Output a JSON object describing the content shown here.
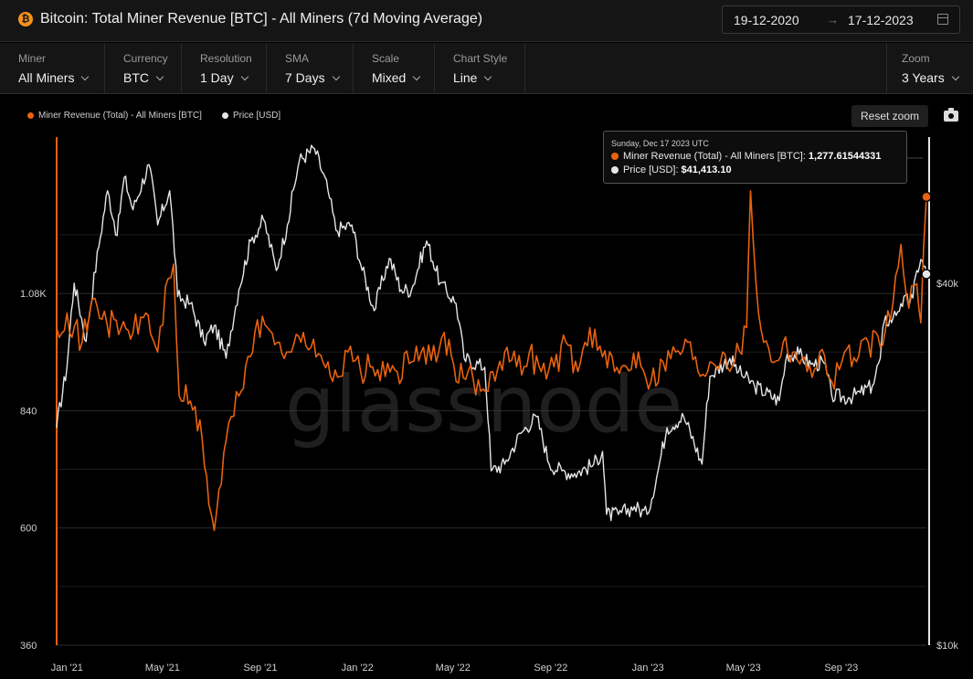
{
  "header": {
    "title": "Bitcoin: Total Miner Revenue [BTC] - All Miners (7d Moving Average)",
    "asset_icon": "₿",
    "date_from": "19-12-2020",
    "date_arrow": "→",
    "date_to": "17-12-2023"
  },
  "controls": [
    {
      "label": "Miner",
      "value": "All Miners"
    },
    {
      "label": "Currency",
      "value": "BTC"
    },
    {
      "label": "Resolution",
      "value": "1 Day"
    },
    {
      "label": "SMA",
      "value": "7 Days"
    },
    {
      "label": "Scale",
      "value": "Mixed"
    },
    {
      "label": "Chart Style",
      "value": "Line"
    }
  ],
  "zoom": {
    "label": "Zoom",
    "value": "3 Years"
  },
  "toolbar": {
    "reset_label": "Reset zoom"
  },
  "watermark": "glassnode",
  "tooltip": {
    "date": "Sunday, Dec 17 2023 UTC",
    "revenue_label": "Miner Revenue (Total) - All Miners [BTC]:",
    "revenue_value": "1,277.61544331",
    "price_label": "Price [USD]:",
    "price_value": "$41,413.10"
  },
  "colors": {
    "revenue": "#e8620f",
    "price": "#e6e6e6",
    "background": "#000000",
    "grid": "#2c2c2c"
  },
  "chart_data": {
    "type": "line",
    "x_start": "2020-12-19",
    "x_end": "2023-12-17",
    "x_tick_labels": [
      "Jan '21",
      "May '21",
      "Sep '21",
      "Jan '22",
      "May '22",
      "Sep '22",
      "Jan '23",
      "May '23",
      "Sep '23"
    ],
    "left_axis": {
      "scale": "linear",
      "ticks": [
        "360",
        "600",
        "840",
        "1.08K"
      ],
      "ylim": [
        360,
        1400
      ]
    },
    "right_axis": {
      "scale": "log",
      "ticks": [
        "$10k",
        "$40k"
      ],
      "ylim": [
        10000,
        70000
      ]
    },
    "legend": [
      "Miner Revenue (Total) - All Miners [BTC]",
      "Price [USD]"
    ],
    "legend_position": "top-left",
    "grid": true,
    "series": [
      {
        "name": "Miner Revenue (Total) - All Miners [BTC]",
        "axis": "left",
        "points": [
          [
            "2020-12-19",
            1010
          ],
          [
            "2021-01-01",
            1040
          ],
          [
            "2021-01-20",
            980
          ],
          [
            "2021-02-05",
            1070
          ],
          [
            "2021-02-20",
            1020
          ],
          [
            "2021-03-10",
            1010
          ],
          [
            "2021-03-25",
            1000
          ],
          [
            "2021-04-10",
            1040
          ],
          [
            "2021-04-25",
            960
          ],
          [
            "2021-05-08",
            1110
          ],
          [
            "2021-05-15",
            1140
          ],
          [
            "2021-05-22",
            870
          ],
          [
            "2021-06-05",
            860
          ],
          [
            "2021-06-20",
            780
          ],
          [
            "2021-07-01",
            630
          ],
          [
            "2021-07-05",
            595
          ],
          [
            "2021-07-20",
            780
          ],
          [
            "2021-08-05",
            870
          ],
          [
            "2021-08-25",
            1000
          ],
          [
            "2021-09-10",
            1010
          ],
          [
            "2021-09-25",
            980
          ],
          [
            "2021-10-10",
            960
          ],
          [
            "2021-10-25",
            1000
          ],
          [
            "2021-11-10",
            950
          ],
          [
            "2021-11-25",
            940
          ],
          [
            "2021-12-10",
            910
          ],
          [
            "2021-12-20",
            960
          ],
          [
            "2022-01-05",
            920
          ],
          [
            "2022-01-20",
            930
          ],
          [
            "2022-02-05",
            910
          ],
          [
            "2022-02-20",
            920
          ],
          [
            "2022-03-10",
            940
          ],
          [
            "2022-03-25",
            970
          ],
          [
            "2022-04-10",
            940
          ],
          [
            "2022-04-20",
            1000
          ],
          [
            "2022-05-05",
            900
          ],
          [
            "2022-05-20",
            920
          ],
          [
            "2022-06-05",
            880
          ],
          [
            "2022-06-20",
            920
          ],
          [
            "2022-07-05",
            960
          ],
          [
            "2022-07-20",
            930
          ],
          [
            "2022-08-05",
            960
          ],
          [
            "2022-08-20",
            920
          ],
          [
            "2022-09-05",
            930
          ],
          [
            "2022-09-20",
            980
          ],
          [
            "2022-10-05",
            920
          ],
          [
            "2022-10-20",
            1010
          ],
          [
            "2022-11-05",
            950
          ],
          [
            "2022-11-20",
            920
          ],
          [
            "2022-12-05",
            930
          ],
          [
            "2022-12-20",
            960
          ],
          [
            "2023-01-05",
            900
          ],
          [
            "2023-01-20",
            940
          ],
          [
            "2023-02-05",
            960
          ],
          [
            "2023-02-20",
            980
          ],
          [
            "2023-03-05",
            920
          ],
          [
            "2023-03-20",
            940
          ],
          [
            "2023-04-05",
            960
          ],
          [
            "2023-04-20",
            940
          ],
          [
            "2023-05-05",
            1010
          ],
          [
            "2023-05-10",
            1290
          ],
          [
            "2023-05-20",
            1040
          ],
          [
            "2023-06-05",
            940
          ],
          [
            "2023-06-20",
            980
          ],
          [
            "2023-07-05",
            960
          ],
          [
            "2023-07-20",
            920
          ],
          [
            "2023-08-05",
            960
          ],
          [
            "2023-08-20",
            900
          ],
          [
            "2023-09-05",
            960
          ],
          [
            "2023-09-20",
            940
          ],
          [
            "2023-10-05",
            980
          ],
          [
            "2023-10-20",
            970
          ],
          [
            "2023-11-05",
            1060
          ],
          [
            "2023-11-15",
            1180
          ],
          [
            "2023-11-25",
            1050
          ],
          [
            "2023-12-05",
            1100
          ],
          [
            "2023-12-10",
            1020
          ],
          [
            "2023-12-17",
            1277.6
          ]
        ]
      },
      {
        "name": "Price [USD]",
        "axis": "right",
        "points": [
          [
            "2020-12-19",
            23000
          ],
          [
            "2021-01-01",
            29000
          ],
          [
            "2021-01-10",
            40000
          ],
          [
            "2021-01-25",
            32000
          ],
          [
            "2021-02-10",
            46000
          ],
          [
            "2021-02-21",
            57000
          ],
          [
            "2021-03-05",
            48000
          ],
          [
            "2021-03-14",
            60000
          ],
          [
            "2021-03-25",
            53000
          ],
          [
            "2021-04-14",
            63000
          ],
          [
            "2021-04-25",
            50000
          ],
          [
            "2021-05-10",
            57000
          ],
          [
            "2021-05-20",
            38000
          ],
          [
            "2021-06-05",
            37000
          ],
          [
            "2021-06-22",
            32000
          ],
          [
            "2021-07-05",
            34000
          ],
          [
            "2021-07-20",
            30000
          ],
          [
            "2021-08-05",
            39000
          ],
          [
            "2021-08-20",
            47000
          ],
          [
            "2021-09-05",
            51000
          ],
          [
            "2021-09-21",
            42000
          ],
          [
            "2021-10-05",
            50000
          ],
          [
            "2021-10-20",
            64000
          ],
          [
            "2021-11-08",
            67000
          ],
          [
            "2021-11-25",
            57000
          ],
          [
            "2021-12-05",
            49000
          ],
          [
            "2021-12-25",
            50000
          ],
          [
            "2022-01-05",
            43000
          ],
          [
            "2022-01-22",
            36000
          ],
          [
            "2022-02-10",
            44000
          ],
          [
            "2022-02-25",
            39000
          ],
          [
            "2022-03-10",
            39000
          ],
          [
            "2022-03-29",
            47000
          ],
          [
            "2022-04-15",
            40000
          ],
          [
            "2022-05-05",
            37000
          ],
          [
            "2022-05-15",
            30000
          ],
          [
            "2022-06-10",
            29000
          ],
          [
            "2022-06-18",
            19500
          ],
          [
            "2022-07-05",
            20000
          ],
          [
            "2022-07-25",
            22500
          ],
          [
            "2022-08-14",
            24000
          ],
          [
            "2022-08-30",
            20000
          ],
          [
            "2022-09-15",
            19500
          ],
          [
            "2022-10-01",
            19300
          ],
          [
            "2022-10-25",
            20000
          ],
          [
            "2022-11-05",
            21000
          ],
          [
            "2022-11-10",
            16500
          ],
          [
            "2022-11-25",
            16500
          ],
          [
            "2022-12-15",
            17000
          ],
          [
            "2022-12-31",
            16500
          ],
          [
            "2023-01-12",
            19000
          ],
          [
            "2023-01-25",
            23000
          ],
          [
            "2023-02-15",
            24000
          ],
          [
            "2023-03-10",
            20000
          ],
          [
            "2023-03-20",
            28000
          ],
          [
            "2023-04-14",
            30000
          ],
          [
            "2023-04-25",
            28500
          ],
          [
            "2023-05-15",
            27000
          ],
          [
            "2023-06-15",
            25500
          ],
          [
            "2023-06-25",
            30500
          ],
          [
            "2023-07-10",
            30500
          ],
          [
            "2023-07-25",
            29300
          ],
          [
            "2023-08-10",
            29500
          ],
          [
            "2023-08-20",
            26000
          ],
          [
            "2023-09-10",
            25800
          ],
          [
            "2023-09-25",
            26300
          ],
          [
            "2023-10-10",
            27000
          ],
          [
            "2023-10-20",
            30000
          ],
          [
            "2023-10-25",
            34500
          ],
          [
            "2023-11-05",
            35000
          ],
          [
            "2023-11-15",
            37000
          ],
          [
            "2023-11-30",
            37800
          ],
          [
            "2023-12-05",
            42000
          ],
          [
            "2023-12-10",
            43800
          ],
          [
            "2023-12-17",
            41413.1
          ]
        ]
      }
    ],
    "hover_marker_date": "2023-12-17"
  }
}
